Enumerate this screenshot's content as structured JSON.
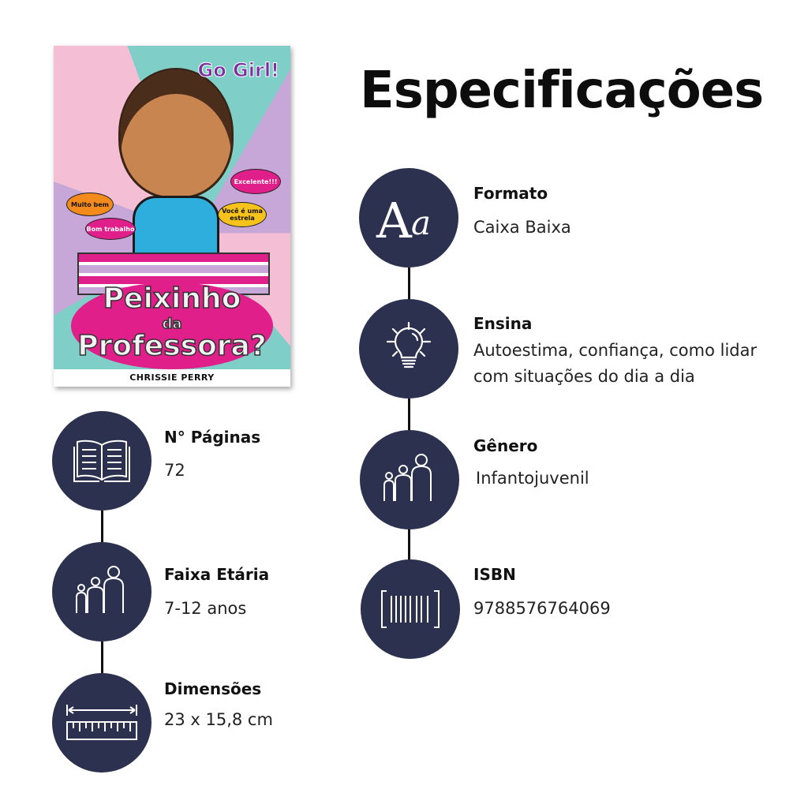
{
  "heading": "Especificações",
  "book_cover": {
    "series_logo": "Go Girl!",
    "title_line1": "Peixinho",
    "title_line2": "da",
    "title_line3": "Professora?",
    "author": "CHRISSIE PERRY",
    "stickers": [
      "Muito bem",
      "Bom trabalho",
      "Excelente!!!",
      "Você é uma estrela"
    ]
  },
  "specs": [
    {
      "label": "Formato",
      "value": "Caixa Baixa",
      "icon": "typography-icon"
    },
    {
      "label": "Ensina",
      "value": "Autoestima, confiança, como lidar com situações do dia a dia",
      "icon": "lightbulb-icon"
    },
    {
      "label": "Gênero",
      "value": "Infantojuvenil",
      "icon": "family-icon"
    },
    {
      "label": "ISBN",
      "value": "9788576764069",
      "icon": "barcode-icon"
    },
    {
      "label": "N° Páginas",
      "value": "72",
      "icon": "open-book-icon"
    },
    {
      "label": "Faixa Etária",
      "value": "7-12 anos",
      "icon": "family-icon"
    },
    {
      "label": "Dimensões",
      "value": "23 x 15,8 cm",
      "icon": "ruler-icon"
    }
  ],
  "colors": {
    "circle": "#2c3150",
    "accent_pink": "#e01f8a"
  }
}
